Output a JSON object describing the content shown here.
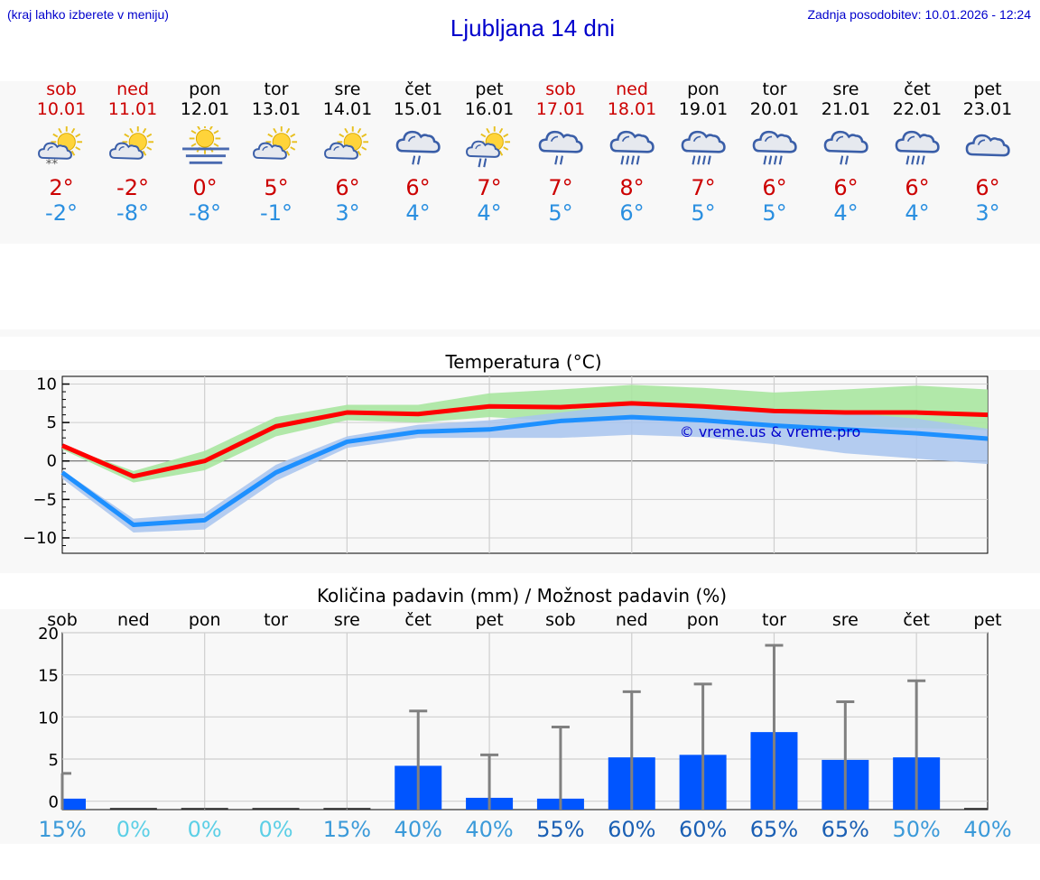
{
  "header": {
    "hint": "(kraj lahko izberete v meniju)",
    "title": "Ljubljana 14 dni",
    "updated": "Zadnja posodobitev: 10.01.2026 - 12:24"
  },
  "days": [
    {
      "name": "sob",
      "date": "10.01",
      "weekend": true,
      "icon": "sun-cloud-snow-icon",
      "tmax": "2°",
      "tmin": "-2°"
    },
    {
      "name": "ned",
      "date": "11.01",
      "weekend": true,
      "icon": "sun-cloud-icon",
      "tmax": "-2°",
      "tmin": "-8°"
    },
    {
      "name": "pon",
      "date": "12.01",
      "weekend": false,
      "icon": "sun-fog-icon",
      "tmax": "0°",
      "tmin": "-8°"
    },
    {
      "name": "tor",
      "date": "13.01",
      "weekend": false,
      "icon": "sun-cloud-icon",
      "tmax": "5°",
      "tmin": "-1°"
    },
    {
      "name": "sre",
      "date": "14.01",
      "weekend": false,
      "icon": "sun-cloud-icon",
      "tmax": "6°",
      "tmin": "3°"
    },
    {
      "name": "čet",
      "date": "15.01",
      "weekend": false,
      "icon": "cloud-rain-icon",
      "tmax": "6°",
      "tmin": "4°"
    },
    {
      "name": "pet",
      "date": "16.01",
      "weekend": false,
      "icon": "sun-cloud-rain-icon",
      "tmax": "7°",
      "tmin": "4°"
    },
    {
      "name": "sob",
      "date": "17.01",
      "weekend": true,
      "icon": "cloud-rain-icon",
      "tmax": "7°",
      "tmin": "5°"
    },
    {
      "name": "ned",
      "date": "18.01",
      "weekend": true,
      "icon": "cloud-heavy-rain-icon",
      "tmax": "8°",
      "tmin": "6°"
    },
    {
      "name": "pon",
      "date": "19.01",
      "weekend": false,
      "icon": "cloud-heavy-rain-icon",
      "tmax": "7°",
      "tmin": "5°"
    },
    {
      "name": "tor",
      "date": "20.01",
      "weekend": false,
      "icon": "cloud-heavy-rain-icon",
      "tmax": "6°",
      "tmin": "5°"
    },
    {
      "name": "sre",
      "date": "21.01",
      "weekend": false,
      "icon": "cloud-rain-icon",
      "tmax": "6°",
      "tmin": "4°"
    },
    {
      "name": "čet",
      "date": "22.01",
      "weekend": false,
      "icon": "cloud-heavy-rain-icon",
      "tmax": "6°",
      "tmin": "4°"
    },
    {
      "name": "pet",
      "date": "23.01",
      "weekend": false,
      "icon": "cloud-icon",
      "tmax": "6°",
      "tmin": "3°"
    }
  ],
  "chart_data": [
    {
      "type": "line",
      "title": "Temperatura (°C)",
      "ylim": [
        -12,
        11
      ],
      "yticks": [
        -10,
        -5,
        0,
        5,
        10
      ],
      "ytick_labels": [
        "−10",
        "−5",
        "0",
        "5",
        "10"
      ],
      "grid": true,
      "annotation": "© vreme.us & vreme.pro",
      "x": [
        0,
        1,
        2,
        3,
        4,
        5,
        6,
        7,
        8,
        9,
        10,
        11,
        12,
        13
      ],
      "series": [
        {
          "values": [
            2,
            -2,
            0,
            4.5,
            6.3,
            6.1,
            7.1,
            7,
            7.5,
            7.1,
            6.5,
            6.3,
            6.3,
            6
          ],
          "color": "#ff0000",
          "band_upper": [
            2,
            -1.3,
            1.3,
            5.7,
            7.3,
            7.3,
            8.8,
            9.3,
            9.9,
            9.5,
            8.9,
            9.3,
            9.8,
            9.3
          ],
          "band_lower": [
            1.5,
            -2.8,
            -1.2,
            3.2,
            5.3,
            5,
            5.7,
            5.2,
            5.5,
            5.4,
            4.7,
            4.5,
            4.3,
            4
          ],
          "band_color": "#a8e6a0"
        },
        {
          "values": [
            -1.5,
            -8.3,
            -7.7,
            -1.5,
            2.5,
            3.8,
            4.1,
            5.2,
            5.7,
            5.3,
            4.6,
            4.1,
            3.6,
            2.9
          ],
          "color": "#1e90ff",
          "band_upper": [
            -1.2,
            -7.5,
            -6.8,
            -0.5,
            3.2,
            4.7,
            5.3,
            6.3,
            7.4,
            7.3,
            6.8,
            6.3,
            5.5,
            4.2
          ],
          "band_lower": [
            -2.3,
            -9.3,
            -8.9,
            -2.6,
            1.7,
            3,
            3,
            3,
            3.4,
            3.1,
            2.2,
            1,
            0.3,
            -0.4
          ],
          "band_color": "#a8c4ee"
        }
      ]
    },
    {
      "type": "bar",
      "title": "Količina padavin (mm) / Možnost padavin (%)",
      "ylim": [
        -1,
        20
      ],
      "yticks": [
        0,
        5,
        10,
        15,
        20
      ],
      "categories": [
        "sob",
        "ned",
        "pon",
        "tor",
        "sre",
        "čet",
        "pet",
        "sob",
        "ned",
        "pon",
        "tor",
        "sre",
        "čet",
        "pet"
      ],
      "values": [
        0.3,
        0,
        0,
        0,
        0,
        4.2,
        0.4,
        0.3,
        5.2,
        5.5,
        8.2,
        4.9,
        5.2,
        0
      ],
      "error_max": [
        3.3,
        0,
        0,
        0,
        0,
        10.7,
        5.5,
        8.8,
        13,
        13.9,
        18.5,
        11.8,
        14.3,
        0
      ],
      "probability": [
        "15%",
        "0%",
        "0%",
        "0%",
        "15%",
        "40%",
        "40%",
        "55%",
        "60%",
        "60%",
        "65%",
        "65%",
        "50%",
        "40%"
      ],
      "probability_values": [
        15,
        0,
        0,
        0,
        15,
        40,
        40,
        55,
        60,
        60,
        65,
        65,
        50,
        40
      ],
      "bar_color": "#0055ff",
      "error_color": "#808080",
      "grid": true
    }
  ]
}
